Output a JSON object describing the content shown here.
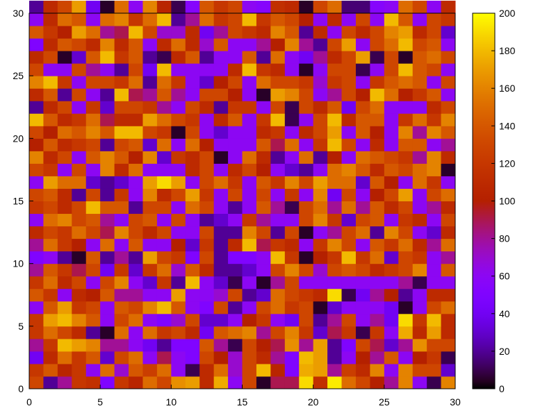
{
  "chart_data": {
    "type": "heatmap",
    "palette": "gnuplot",
    "xlim": [
      0,
      30
    ],
    "ylim": [
      0,
      30
    ],
    "zlim": [
      0,
      200
    ],
    "xticks": [
      0,
      5,
      10,
      15,
      20,
      25,
      30
    ],
    "yticks": [
      0,
      5,
      10,
      15,
      20,
      25,
      30
    ],
    "cbticks": [
      0,
      20,
      40,
      60,
      80,
      100,
      120,
      140,
      160,
      180,
      200
    ],
    "z": [
      [
        130,
        20,
        80,
        120,
        115,
        50,
        120,
        105,
        150,
        130,
        165,
        170,
        110,
        175,
        60,
        130,
        5,
        90,
        90,
        190,
        115,
        195,
        150,
        130,
        100,
        80,
        160,
        60,
        10,
        160
      ],
      [
        120,
        140,
        105,
        120,
        60,
        150,
        70,
        140,
        125,
        150,
        60,
        10,
        110,
        150,
        70,
        130,
        180,
        105,
        50,
        175,
        170,
        80,
        125,
        110,
        160,
        60,
        160,
        130,
        130,
        30
      ],
      [
        40,
        110,
        150,
        120,
        140,
        30,
        130,
        150,
        60,
        90,
        60,
        50,
        130,
        100,
        70,
        130,
        110,
        80,
        50,
        180,
        170,
        20,
        60,
        100,
        80,
        140,
        60,
        100,
        120,
        10
      ],
      [
        80,
        120,
        180,
        170,
        160,
        80,
        80,
        60,
        40,
        20,
        50,
        50,
        140,
        80,
        10,
        130,
        100,
        90,
        165,
        80,
        170,
        20,
        50,
        130,
        90,
        30,
        80,
        165,
        130,
        130
      ],
      [
        120,
        150,
        130,
        110,
        20,
        5,
        150,
        60,
        150,
        120,
        130,
        110,
        40,
        140,
        150,
        160,
        80,
        130,
        160,
        120,
        30,
        90,
        120,
        10,
        120,
        60,
        175,
        110,
        170,
        110
      ],
      [
        120,
        170,
        180,
        160,
        140,
        60,
        130,
        150,
        60,
        50,
        70,
        130,
        30,
        30,
        60,
        100,
        120,
        60,
        40,
        130,
        20,
        80,
        130,
        60,
        80,
        40,
        190,
        120,
        180,
        110
      ],
      [
        60,
        140,
        170,
        120,
        130,
        60,
        140,
        130,
        160,
        180,
        140,
        60,
        50,
        130,
        20,
        60,
        130,
        150,
        120,
        130,
        5,
        30,
        60,
        60,
        60,
        40,
        5,
        60,
        130,
        150
      ],
      [
        140,
        120,
        60,
        110,
        100,
        140,
        80,
        80,
        60,
        60,
        170,
        60,
        60,
        70,
        130,
        20,
        30,
        150,
        130,
        120,
        110,
        190,
        10,
        40,
        80,
        100,
        20,
        60,
        110,
        110
      ],
      [
        120,
        150,
        110,
        130,
        60,
        130,
        160,
        60,
        30,
        120,
        20,
        180,
        60,
        30,
        10,
        60,
        5,
        80,
        130,
        60,
        60,
        60,
        60,
        60,
        60,
        60,
        80,
        10,
        60,
        60
      ],
      [
        80,
        140,
        120,
        90,
        130,
        40,
        120,
        30,
        120,
        150,
        70,
        140,
        110,
        20,
        20,
        30,
        60,
        130,
        160,
        130,
        70,
        130,
        140,
        130,
        110,
        120,
        130,
        160,
        60,
        140
      ],
      [
        50,
        60,
        20,
        5,
        140,
        20,
        80,
        20,
        170,
        130,
        120,
        50,
        130,
        20,
        50,
        50,
        60,
        180,
        120,
        5,
        100,
        120,
        180,
        120,
        150,
        30,
        130,
        120,
        60,
        80
      ],
      [
        80,
        150,
        120,
        100,
        60,
        150,
        60,
        140,
        60,
        60,
        100,
        30,
        120,
        20,
        110,
        180,
        90,
        120,
        110,
        60,
        120,
        160,
        130,
        60,
        140,
        120,
        150,
        110,
        80,
        150
      ],
      [
        110,
        130,
        120,
        150,
        130,
        90,
        160,
        130,
        110,
        130,
        60,
        60,
        130,
        20,
        20,
        160,
        130,
        20,
        130,
        5,
        60,
        80,
        130,
        150,
        20,
        160,
        130,
        60,
        30,
        110
      ],
      [
        60,
        150,
        160,
        130,
        140,
        80,
        60,
        130,
        140,
        60,
        130,
        60,
        20,
        30,
        60,
        120,
        80,
        60,
        60,
        130,
        160,
        120,
        30,
        130,
        140,
        60,
        120,
        110,
        60,
        130
      ],
      [
        120,
        130,
        110,
        130,
        180,
        140,
        140,
        20,
        130,
        130,
        60,
        150,
        130,
        60,
        20,
        60,
        140,
        80,
        10,
        130,
        150,
        80,
        150,
        80,
        140,
        110,
        130,
        60,
        80,
        110
      ],
      [
        130,
        140,
        110,
        20,
        130,
        20,
        120,
        60,
        160,
        110,
        130,
        170,
        120,
        60,
        130,
        60,
        130,
        60,
        120,
        60,
        160,
        40,
        130,
        60,
        100,
        130,
        170,
        60,
        130,
        150
      ],
      [
        60,
        170,
        150,
        150,
        30,
        20,
        30,
        60,
        170,
        190,
        170,
        60,
        130,
        150,
        120,
        60,
        140,
        120,
        160,
        130,
        170,
        150,
        150,
        30,
        140,
        100,
        60,
        150,
        120,
        60
      ],
      [
        130,
        120,
        60,
        130,
        60,
        160,
        110,
        150,
        60,
        60,
        60,
        110,
        130,
        60,
        110,
        130,
        100,
        60,
        30,
        20,
        60,
        150,
        160,
        140,
        110,
        140,
        130,
        150,
        160,
        5
      ],
      [
        160,
        110,
        130,
        60,
        140,
        160,
        140,
        100,
        160,
        30,
        120,
        110,
        130,
        5,
        60,
        150,
        110,
        20,
        60,
        150,
        20,
        100,
        60,
        150,
        140,
        130,
        120,
        80,
        160,
        110
      ],
      [
        100,
        140,
        110,
        120,
        130,
        20,
        130,
        140,
        30,
        150,
        60,
        150,
        100,
        60,
        60,
        60,
        140,
        90,
        150,
        60,
        120,
        180,
        130,
        60,
        110,
        60,
        140,
        140,
        60,
        80
      ],
      [
        130,
        100,
        150,
        140,
        160,
        140,
        180,
        180,
        130,
        120,
        5,
        130,
        60,
        30,
        60,
        60,
        110,
        120,
        60,
        110,
        130,
        170,
        60,
        140,
        100,
        60,
        160,
        80,
        160,
        140
      ],
      [
        180,
        140,
        110,
        120,
        150,
        90,
        110,
        110,
        170,
        150,
        130,
        120,
        60,
        110,
        140,
        60,
        120,
        180,
        10,
        60,
        130,
        180,
        110,
        140,
        140,
        60,
        120,
        150,
        120,
        160
      ],
      [
        20,
        110,
        130,
        60,
        120,
        30,
        130,
        130,
        120,
        80,
        60,
        130,
        110,
        20,
        120,
        120,
        60,
        130,
        10,
        130,
        110,
        140,
        40,
        130,
        150,
        60,
        60,
        60,
        110,
        130
      ],
      [
        110,
        140,
        20,
        130,
        60,
        20,
        180,
        90,
        80,
        140,
        80,
        60,
        130,
        130,
        100,
        60,
        5,
        170,
        160,
        130,
        60,
        80,
        130,
        100,
        180,
        150,
        100,
        120,
        140,
        60
      ],
      [
        160,
        180,
        120,
        60,
        130,
        130,
        120,
        150,
        20,
        150,
        120,
        60,
        30,
        100,
        130,
        60,
        150,
        130,
        130,
        120,
        70,
        120,
        130,
        60,
        120,
        140,
        150,
        140,
        60,
        130
      ],
      [
        130,
        60,
        60,
        130,
        80,
        60,
        20,
        130,
        40,
        180,
        60,
        60,
        60,
        60,
        110,
        180,
        120,
        110,
        60,
        5,
        60,
        130,
        130,
        10,
        60,
        130,
        180,
        140,
        130,
        60
      ],
      [
        110,
        130,
        5,
        30,
        140,
        180,
        120,
        140,
        20,
        10,
        110,
        140,
        20,
        60,
        60,
        140,
        20,
        150,
        60,
        40,
        80,
        110,
        130,
        170,
        10,
        130,
        5,
        140,
        150,
        130
      ],
      [
        50,
        110,
        140,
        130,
        110,
        160,
        110,
        140,
        60,
        110,
        150,
        110,
        70,
        140,
        60,
        60,
        80,
        100,
        160,
        80,
        20,
        130,
        170,
        60,
        130,
        150,
        180,
        130,
        140,
        60
      ],
      [
        140,
        120,
        100,
        170,
        150,
        80,
        90,
        180,
        130,
        70,
        70,
        110,
        40,
        80,
        130,
        120,
        110,
        160,
        140,
        20,
        110,
        60,
        130,
        110,
        130,
        160,
        170,
        110,
        130,
        30
      ],
      [
        60,
        110,
        150,
        140,
        60,
        150,
        160,
        120,
        150,
        180,
        20,
        80,
        150,
        120,
        130,
        180,
        120,
        140,
        130,
        100,
        60,
        110,
        60,
        130,
        60,
        180,
        140,
        60,
        130,
        120
      ],
      [
        20,
        110,
        130,
        170,
        40,
        5,
        150,
        60,
        160,
        105,
        10,
        55,
        140,
        120,
        130,
        60,
        55,
        115,
        110,
        5,
        130,
        150,
        15,
        15,
        55,
        60,
        150,
        130,
        60,
        110
      ]
    ]
  }
}
